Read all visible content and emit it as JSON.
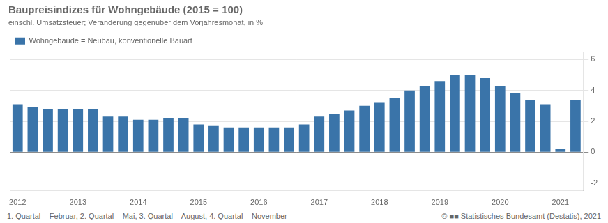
{
  "chart_data": {
    "type": "bar",
    "title": "Baupreisindizes für Wohngebäude (2015 = 100)",
    "subtitle": "einschl. Umsatzsteuer; Veränderung gegenüber dem Vorjahresmonat, in %",
    "annotations": [
      "1. Quartal = Februar, 2. Quartal = Mai, 3. Quartal = August, 4. Quartal = November",
      "© ■■ Statistisches Bundesamt (Destatis), 2021"
    ],
    "categories": [
      "2012",
      null,
      null,
      null,
      "2013",
      null,
      null,
      null,
      "2014",
      null,
      null,
      null,
      "2015",
      null,
      null,
      null,
      "2016",
      null,
      null,
      null,
      "2017",
      null,
      null,
      null,
      "2018",
      null,
      null,
      null,
      "2019",
      null,
      null,
      null,
      "2020",
      null,
      null,
      null,
      "2021",
      null
    ],
    "series": [
      {
        "name": "Wohngebäude = Neubau, konventionelle Bauart",
        "color": "#3a74a9",
        "values": [
          3.1,
          2.9,
          2.8,
          2.8,
          2.8,
          2.8,
          2.3,
          2.3,
          2.1,
          2.1,
          2.2,
          2.2,
          1.8,
          1.7,
          1.6,
          1.6,
          1.6,
          1.6,
          1.6,
          1.8,
          2.3,
          2.5,
          2.7,
          3.0,
          3.2,
          3.5,
          4.0,
          4.3,
          4.6,
          5.0,
          5.0,
          4.8,
          4.3,
          3.8,
          3.4,
          3.1,
          0.2,
          3.4
        ]
      }
    ],
    "ylim": [
      -2.5,
      6.5
    ],
    "yticks": [
      -2,
      0,
      2,
      4,
      6
    ],
    "grid": true,
    "legend": "upper left"
  }
}
